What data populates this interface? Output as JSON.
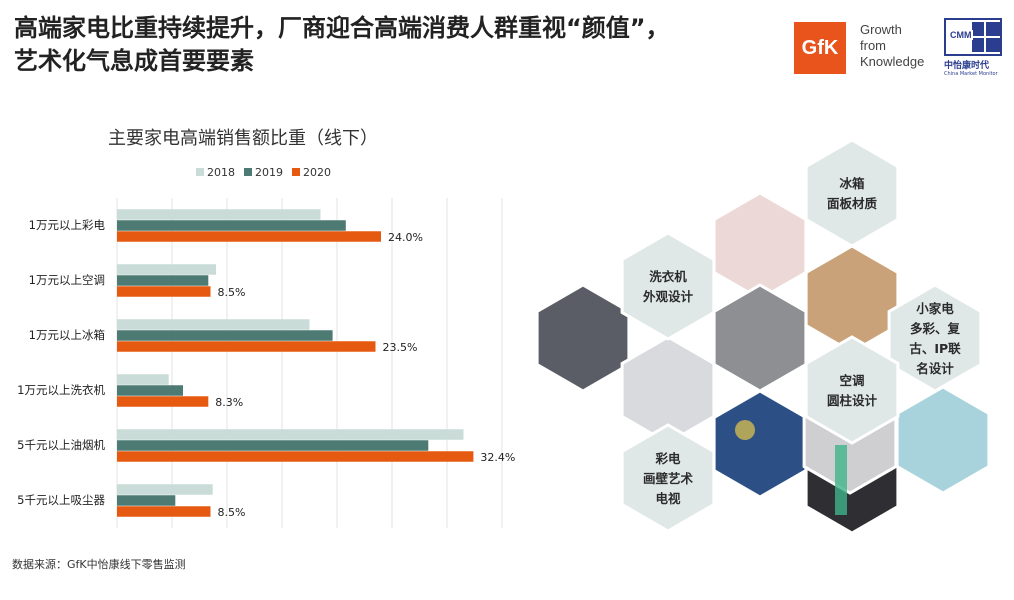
{
  "header": {
    "title_line1": "高端家电比重持续提升，厂商迎合高端消费人群重视“颜值”，",
    "title_line2": "艺术化气息成首要要素",
    "gfk_logo": "GfK",
    "gfk_tagline": [
      "Growth",
      "from",
      "Knowledge"
    ],
    "cmm_logo": "CMM",
    "cmm_name": "中怡康时代",
    "cmm_english": "China Market Monitor"
  },
  "chart_data": {
    "type": "bar",
    "orientation": "horizontal",
    "title": "主要家电高端销售额比重（线下）",
    "categories": [
      "1万元以上彩电",
      "1万元以上空调",
      "1万元以上冰箱",
      "1万元以上洗衣机",
      "5千元以上油烟机",
      "5千元以上吸尘器"
    ],
    "series": [
      {
        "name": "2018",
        "color": "#c9dcd8",
        "values": [
          18.5,
          9.0,
          17.5,
          4.7,
          31.5,
          8.7
        ]
      },
      {
        "name": "2019",
        "color": "#4d7a72",
        "values": [
          20.8,
          8.3,
          19.6,
          6.0,
          28.3,
          5.3
        ]
      },
      {
        "name": "2020",
        "color": "#e55a10",
        "values": [
          24.0,
          8.5,
          23.5,
          8.3,
          32.4,
          8.5
        ]
      }
    ],
    "data_labels": [
      "24.0%",
      "8.5%",
      "23.5%",
      "8.3%",
      "32.4%",
      "8.5%"
    ],
    "xlim": [
      0,
      35
    ],
    "grid": true,
    "legend_position": "top"
  },
  "hexagons": [
    {
      "lines": [
        "冰箱",
        "面板材质"
      ]
    },
    {
      "lines": [
        "洗衣机",
        "外观设计"
      ]
    },
    {
      "lines": [
        "小家电",
        "多彩、复",
        "古、IP联",
        "名设计"
      ]
    },
    {
      "lines": [
        "空调",
        "圆柱设计"
      ]
    },
    {
      "lines": [
        "彩电",
        "画壁艺术",
        "电视"
      ]
    }
  ],
  "source": "数据来源：GfK中怡康线下零售监测"
}
